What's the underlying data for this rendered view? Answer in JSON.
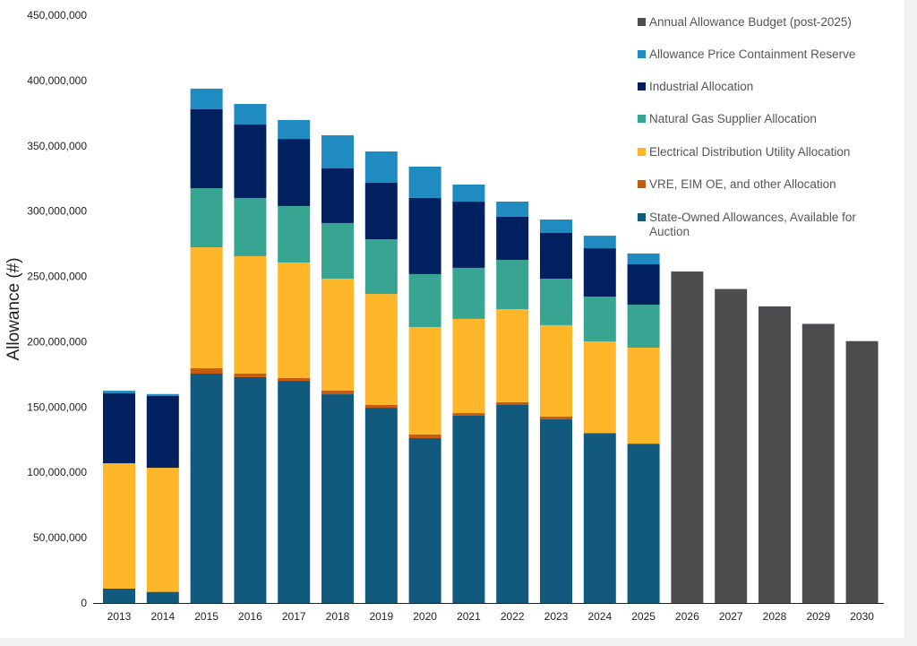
{
  "chart_data": {
    "type": "bar",
    "stacked": true,
    "ylabel": "Allowance (#)",
    "xlabel": "",
    "ylim": [
      0,
      450000000
    ],
    "yticks": [
      0,
      50000000,
      100000000,
      150000000,
      200000000,
      250000000,
      300000000,
      350000000,
      400000000,
      450000000
    ],
    "grid": false,
    "legend_position": "top-right",
    "categories": [
      "2013",
      "2014",
      "2015",
      "2016",
      "2017",
      "2018",
      "2019",
      "2020",
      "2021",
      "2022",
      "2023",
      "2024",
      "2025",
      "2026",
      "2027",
      "2028",
      "2029",
      "2030"
    ],
    "series": [
      {
        "name": "State-Owned Allowances, Available for Auction",
        "color": "#115a7e",
        "values": [
          11000000,
          8500000,
          175600000,
          172900000,
          170100000,
          159800000,
          149500000,
          126200000,
          143400000,
          151600000,
          140600000,
          129700000,
          121400000,
          0,
          0,
          0,
          0,
          0
        ]
      },
      {
        "name": "VRE, EIM OE, and other Allocation",
        "color": "#c55a11",
        "values": [
          0,
          0,
          4100000,
          2700000,
          2100000,
          2800000,
          2100000,
          2800000,
          2000000,
          2100000,
          2100000,
          600000,
          700000,
          0,
          0,
          0,
          0,
          0
        ]
      },
      {
        "name": "Electrical Distribution Utility Allocation",
        "color": "#ffb629",
        "values": [
          96000000,
          95000000,
          92600000,
          89900000,
          88500000,
          85700000,
          85000000,
          82300000,
          72100000,
          71300000,
          70000000,
          69900000,
          73400000,
          0,
          0,
          0,
          0,
          0
        ]
      },
      {
        "name": "Natural Gas Supplier Allocation",
        "color": "#38a593",
        "values": [
          0,
          0,
          45300000,
          44600000,
          43200000,
          42600000,
          41900000,
          40500000,
          39100000,
          37700000,
          35600000,
          34300000,
          32900000,
          0,
          0,
          0,
          0,
          0
        ]
      },
      {
        "name": "Industrial Allocation",
        "color": "#002060",
        "values": [
          53500000,
          55000000,
          60400000,
          56200000,
          51400000,
          41800000,
          43200000,
          58300000,
          50700000,
          33000000,
          35000000,
          37100000,
          30900000,
          0,
          0,
          0,
          0,
          0
        ]
      },
      {
        "name": "Allowance Price Containment Reserve",
        "color": "#208bc1",
        "values": [
          2000000,
          1500000,
          15800000,
          15800000,
          14500000,
          25400000,
          24000000,
          24000000,
          13100000,
          11600000,
          10300000,
          9600000,
          8300000,
          0,
          0,
          0,
          0,
          0
        ]
      },
      {
        "name": "Annual Allowance Budget (post-2025)",
        "color": "#4d4d4f",
        "values": [
          0,
          0,
          0,
          0,
          0,
          0,
          0,
          0,
          0,
          0,
          0,
          0,
          0,
          253800000,
          240400000,
          227100000,
          213700000,
          200500000
        ]
      }
    ],
    "legend_order": [
      "Annual Allowance Budget (post-2025)",
      "Allowance Price Containment Reserve",
      "Industrial Allocation",
      "Natural Gas Supplier Allocation",
      "Electrical Distribution Utility Allocation",
      "VRE, EIM OE, and other Allocation",
      "State-Owned Allowances, Available for Auction"
    ]
  }
}
